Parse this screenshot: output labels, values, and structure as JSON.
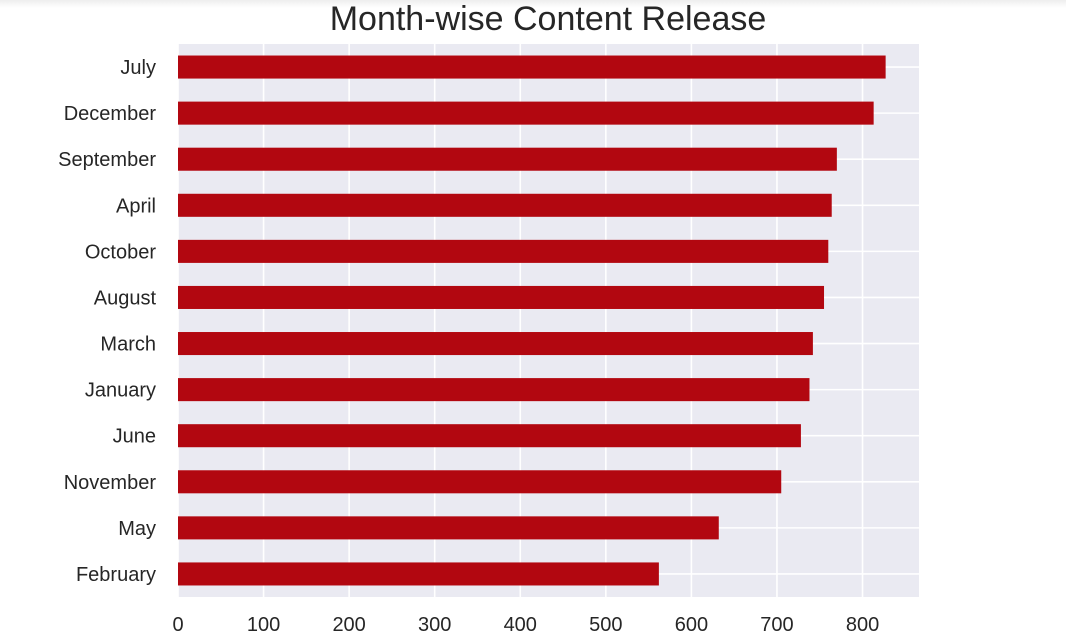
{
  "chart_data": {
    "type": "bar",
    "orientation": "horizontal",
    "title": "Month-wise Content Release",
    "xlabel": "",
    "ylabel": "",
    "categories": [
      "July",
      "December",
      "September",
      "April",
      "October",
      "August",
      "March",
      "January",
      "June",
      "November",
      "May",
      "February"
    ],
    "values": [
      827,
      813,
      770,
      764,
      760,
      755,
      742,
      738,
      728,
      705,
      632,
      562
    ],
    "xlim": [
      0,
      866
    ],
    "xticks": [
      0,
      100,
      200,
      300,
      400,
      500,
      600,
      700,
      800
    ],
    "grid": true,
    "legend": "none",
    "colors": {
      "bar": "#b20710",
      "plot_background": "#eaeaf2",
      "grid": "#ffffff",
      "text": "#262626"
    }
  }
}
